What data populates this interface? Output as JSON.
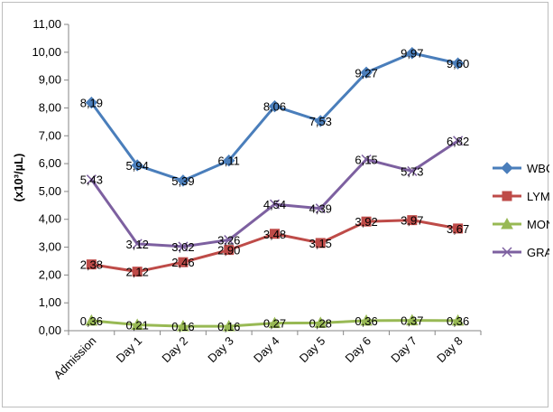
{
  "chart_data": {
    "type": "line",
    "title": "",
    "xlabel": "",
    "ylabel": "(x10³/µL)",
    "ylim": [
      0,
      11
    ],
    "ytick_step": 1,
    "ytick_labels": [
      "0,00",
      "1,00",
      "2,00",
      "3,00",
      "4,00",
      "5,00",
      "6,00",
      "7,00",
      "8,00",
      "9,00",
      "10,00",
      "11,00"
    ],
    "grid": false,
    "legend_position": "right",
    "categories": [
      "Admission",
      "Day 1",
      "Day 2",
      "Day 3",
      "Day 4",
      "Day 5",
      "Day 6",
      "Day 7",
      "Day 8"
    ],
    "series": [
      {
        "name": "WBC",
        "color": "#4a7ebb",
        "marker": "diamond",
        "values": [
          8.19,
          5.94,
          5.39,
          6.11,
          8.06,
          7.53,
          9.27,
          9.97,
          9.6
        ],
        "labels": [
          "8,19",
          "5,94",
          "5,39",
          "6,11",
          "8,06",
          "7,53",
          "9,27",
          "9,97",
          "9,60"
        ]
      },
      {
        "name": "LYM",
        "color": "#be4b48",
        "marker": "square",
        "values": [
          2.38,
          2.12,
          2.46,
          2.9,
          3.48,
          3.15,
          3.92,
          3.97,
          3.67
        ],
        "labels": [
          "2,38",
          "2,12",
          "2,46",
          "2,90",
          "3,48",
          "3,15",
          "3,92",
          "3,97",
          "3,67"
        ]
      },
      {
        "name": "MONO",
        "color": "#98b954",
        "marker": "triangle",
        "values": [
          0.36,
          0.21,
          0.16,
          0.16,
          0.27,
          0.28,
          0.36,
          0.37,
          0.36
        ],
        "labels": [
          "0,36",
          "0,21",
          "0,16",
          "0,16",
          "0,27",
          "0,28",
          "0,36",
          "0,37",
          "0,36"
        ]
      },
      {
        "name": "GRA",
        "color": "#7d60a0",
        "marker": "x",
        "values": [
          5.43,
          3.12,
          3.02,
          3.26,
          4.54,
          4.39,
          6.15,
          5.73,
          6.82
        ],
        "labels": [
          "5,43",
          "3,12",
          "3,02",
          "3,26",
          "4,54",
          "4,39",
          "6,15",
          "5,73",
          "6,82"
        ]
      }
    ]
  }
}
